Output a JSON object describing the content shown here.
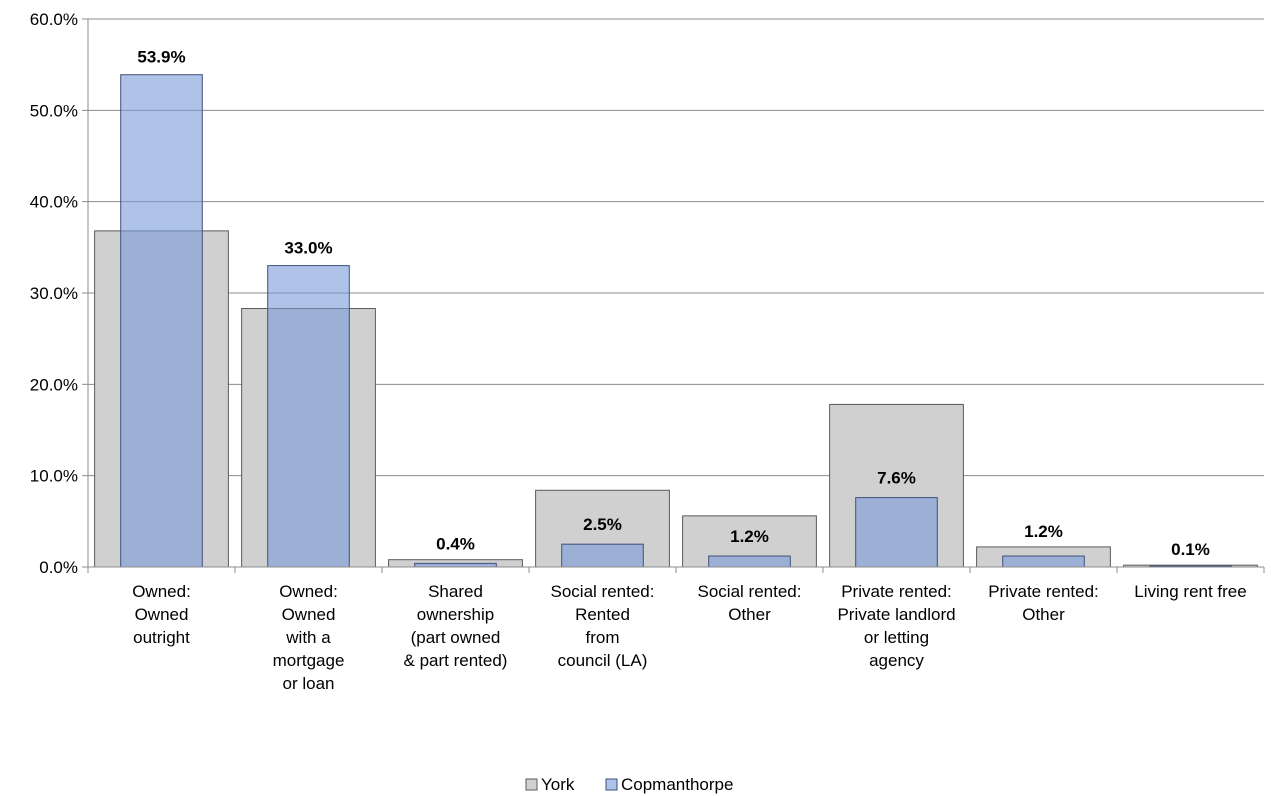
{
  "chart_data": {
    "type": "bar",
    "categories": [
      [
        "Owned:",
        "Owned",
        "outright"
      ],
      [
        "Owned:",
        "Owned",
        "with a",
        "mortgage",
        "or loan"
      ],
      [
        "Shared",
        "ownership",
        "(part owned",
        "& part rented)"
      ],
      [
        "Social rented:",
        "Rented",
        "from",
        "council (LA)"
      ],
      [
        "Social rented:",
        "Other"
      ],
      [
        "Private rented:",
        "Private landlord",
        "or letting",
        "agency"
      ],
      [
        "Private rented:",
        "Other"
      ],
      [
        "Living rent free"
      ]
    ],
    "series": [
      {
        "name": "York",
        "values": [
          36.8,
          28.3,
          0.8,
          8.4,
          5.6,
          17.8,
          2.2,
          0.2
        ]
      },
      {
        "name": "Copmanthorpe",
        "values": [
          53.9,
          33.0,
          0.4,
          2.5,
          1.2,
          7.6,
          1.2,
          0.1
        ]
      }
    ],
    "data_labels": [
      "53.9%",
      "33.0%",
      "0.4%",
      "2.5%",
      "1.2%",
      "7.6%",
      "1.2%",
      "0.1%"
    ],
    "y_ticks": [
      "0.0%",
      "10.0%",
      "20.0%",
      "30.0%",
      "40.0%",
      "50.0%",
      "60.0%"
    ],
    "ylim": [
      0,
      60
    ],
    "grid": true,
    "legend_position": "bottom",
    "colors": {
      "york_fill": "#d0d0d0",
      "york_stroke": "#5a5a5a",
      "copmanthorpe_fill": "rgba(120,155,215,0.6)",
      "copmanthorpe_stroke": "#3e4f7a",
      "grid": "#8c8c8c",
      "axis": "#8c8c8c"
    }
  }
}
